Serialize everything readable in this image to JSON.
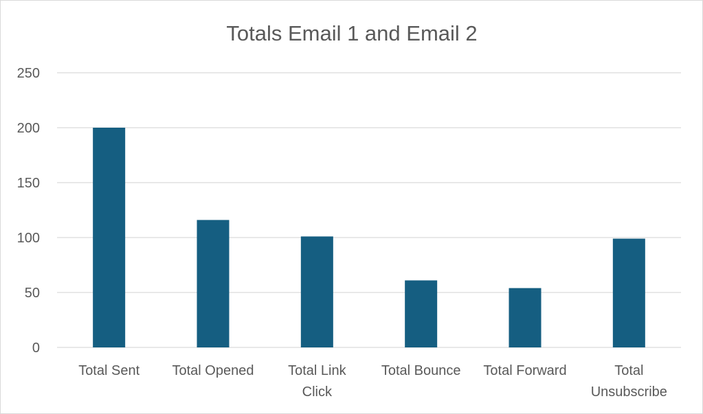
{
  "chart_data": {
    "type": "bar",
    "title": "Totals Email 1 and Email 2",
    "categories": [
      [
        "Total Sent"
      ],
      [
        "Total Opened"
      ],
      [
        "Total Link",
        "Click"
      ],
      [
        "Total Bounce"
      ],
      [
        "Total Forward"
      ],
      [
        "Total",
        "Unsubscribe"
      ]
    ],
    "values": [
      200,
      116,
      101,
      61,
      54,
      99
    ],
    "ylim": [
      0,
      250
    ],
    "yticks": [
      0,
      50,
      100,
      150,
      200,
      250
    ],
    "grid": true,
    "legend": "none",
    "bar_color": "#155e81"
  }
}
